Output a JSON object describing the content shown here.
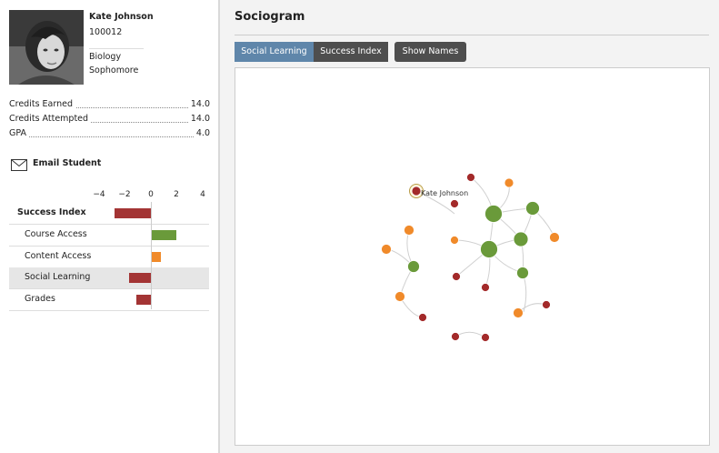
{
  "student": {
    "name": "Kate Johnson",
    "id": "100012",
    "major": "Biology",
    "year": "Sophomore"
  },
  "stats": [
    {
      "label": "Credits Earned",
      "value": "14.0"
    },
    {
      "label": "Credits Attempted",
      "value": "14.0"
    },
    {
      "label": "GPA",
      "value": "4.0"
    }
  ],
  "email_label": "Email Student",
  "axis_ticks": [
    "−4",
    "−2",
    "0",
    "2",
    "4"
  ],
  "success_rows": [
    {
      "label": "Success Index",
      "value": -2.8,
      "color": "#a33434"
    },
    {
      "label": "Course Access",
      "value": 2.0,
      "color": "#6a9a3a"
    },
    {
      "label": "Content Access",
      "value": 0.8,
      "color": "#f08a2a"
    },
    {
      "label": "Social Learning",
      "value": -1.7,
      "color": "#a33434"
    },
    {
      "label": "Grades",
      "value": -1.1,
      "color": "#a33434"
    }
  ],
  "sociogram": {
    "title": "Sociogram",
    "buttons": [
      "Social Learning",
      "Success Index",
      "Show Names"
    ],
    "active_button": "Social Learning",
    "focus_label": "Kate Johnson",
    "colors": {
      "green": "#6a9a3a",
      "orange": "#f08a2a",
      "red": "#a32a2a",
      "edge": "#d0d0d0"
    }
  }
}
